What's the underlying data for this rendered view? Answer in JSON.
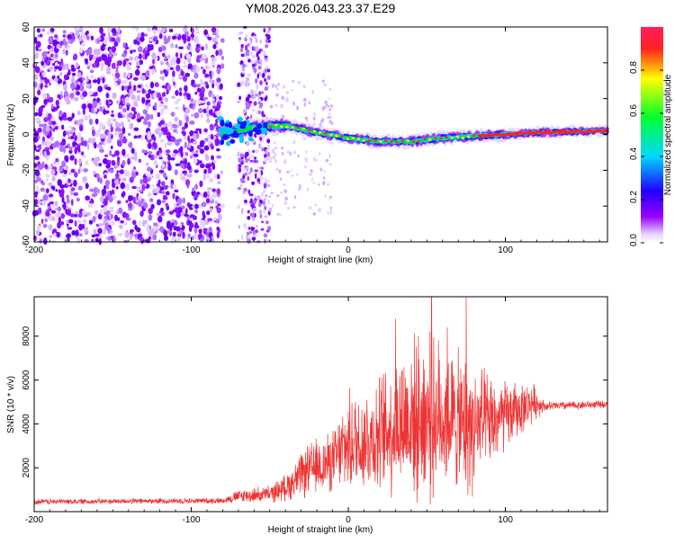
{
  "title": "YM08.2026.043.23.37.E29",
  "colors": {
    "snr_line": "#ee3333",
    "frame": "#000000",
    "spectro_bg": "#ffffff"
  },
  "chart_data": [
    {
      "type": "heatmap",
      "name": "spectrogram",
      "xlabel": "Height of straight line (km)",
      "ylabel": "Frequency (Hz)",
      "xlim": [
        -200,
        165
      ],
      "ylim": [
        -60,
        60
      ],
      "xticks": [
        -200,
        -100,
        0,
        100
      ],
      "yticks": [
        -60,
        -40,
        -20,
        0,
        20,
        40,
        60
      ],
      "colorbar": {
        "label": "Normalized spectral amplitude",
        "range": [
          0.0,
          1.0
        ],
        "ticks": [
          0.0,
          0.2,
          0.4,
          0.6,
          0.8
        ],
        "tick_labels": [
          "0.0",
          "0.2",
          "0.4",
          "0.6",
          "0.8"
        ],
        "colormap": "rainbow (magenta-blue-cyan-green-yellow-red)"
      },
      "features": {
        "noise_region_km": [
          -200,
          -80
        ],
        "noise_secondary_region_km": [
          -70,
          -50
        ],
        "trace_start_km": -80,
        "trace_frequency_hz": [
          {
            "x": -80,
            "f": 0
          },
          {
            "x": -60,
            "f": 4
          },
          {
            "x": -40,
            "f": 5
          },
          {
            "x": -20,
            "f": 1
          },
          {
            "x": 0,
            "f": -2
          },
          {
            "x": 20,
            "f": -4
          },
          {
            "x": 40,
            "f": -4
          },
          {
            "x": 60,
            "f": -2
          },
          {
            "x": 80,
            "f": -1
          },
          {
            "x": 100,
            "f": 0
          },
          {
            "x": 120,
            "f": 1
          },
          {
            "x": 165,
            "f": 2
          }
        ]
      }
    },
    {
      "type": "line",
      "name": "snr",
      "xlabel": "Height of straight line (km)",
      "ylabel": "SNR (10 * v/v)",
      "xlim": [
        -200,
        165
      ],
      "ylim": [
        0,
        9800
      ],
      "xticks": [
        -200,
        -100,
        0,
        100
      ],
      "yticks": [
        2000,
        4000,
        6000,
        8000
      ],
      "envelope": [
        {
          "x": -200,
          "mean": 450,
          "amp": 150
        },
        {
          "x": -80,
          "mean": 500,
          "amp": 150
        },
        {
          "x": -70,
          "mean": 700,
          "amp": 350
        },
        {
          "x": -50,
          "mean": 800,
          "amp": 450
        },
        {
          "x": -40,
          "mean": 1100,
          "amp": 700
        },
        {
          "x": -25,
          "mean": 1900,
          "amp": 1400
        },
        {
          "x": -10,
          "mean": 2300,
          "amp": 1600
        },
        {
          "x": 0,
          "mean": 3100,
          "amp": 2600
        },
        {
          "x": 20,
          "mean": 3500,
          "amp": 3100
        },
        {
          "x": 35,
          "mean": 4200,
          "amp": 4000
        },
        {
          "x": 50,
          "mean": 4300,
          "amp": 4400
        },
        {
          "x": 65,
          "mean": 4300,
          "amp": 3600
        },
        {
          "x": 75,
          "mean": 3800,
          "amp": 3800
        },
        {
          "x": 90,
          "mean": 4000,
          "amp": 2500
        },
        {
          "x": 105,
          "mean": 4500,
          "amp": 1600
        },
        {
          "x": 118,
          "mean": 5000,
          "amp": 1000
        },
        {
          "x": 125,
          "mean": 4800,
          "amp": 250
        },
        {
          "x": 165,
          "mean": 4900,
          "amp": 200
        }
      ],
      "peaks": [
        {
          "x": 30,
          "y": 8800
        },
        {
          "x": 53,
          "y": 9800
        },
        {
          "x": 75,
          "y": 9800
        },
        {
          "x": 63,
          "y": 8400
        },
        {
          "x": 85,
          "y": 6500
        }
      ]
    }
  ]
}
